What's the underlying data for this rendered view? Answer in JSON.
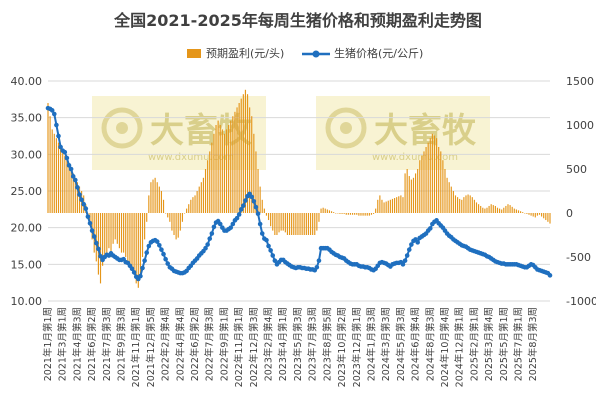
{
  "chart_data": {
    "type": "bar+line",
    "title": "全国2021-2025年每周生猪价格和预期盈利走势图",
    "legend": {
      "placement": "top",
      "entries": [
        {
          "name": "预期盈利(元/头)",
          "kind": "bar",
          "color": "#e5961a"
        },
        {
          "name": "生猪价格(元/公斤)",
          "kind": "line",
          "color": "#1f6fbf"
        }
      ]
    },
    "y_left": {
      "min": 10,
      "max": 40,
      "ticks": [
        "10.00",
        "15.00",
        "20.00",
        "25.00",
        "30.00",
        "35.00",
        "40.00"
      ],
      "unit": "元/公斤"
    },
    "y_right": {
      "min": -1000,
      "max": 1500,
      "ticks": [
        "-1000",
        "-500",
        "0",
        "500",
        "1000",
        "1500"
      ],
      "unit": "元/头"
    },
    "grid": true,
    "x_tick_labels": [
      "2021年1月第1周",
      "2021年3月第1周",
      "2021年4月第3周",
      "2021年6月第2周",
      "2021年7月第3周",
      "2021年9月第3周",
      "2021年11月第1周",
      "2021年12月第5周",
      "2022年2月第4周",
      "2022年4月第4周",
      "2022年6月第2周",
      "2022年7月第3周",
      "2022年9月第1周",
      "2022年11月第1周",
      "2022年12月第3周",
      "2023年2月第4周",
      "2023年4月第1周",
      "2023年5月第3周",
      "2023年7月第3周",
      "2023年8月第5周",
      "2023年10月第2周",
      "2023年12月第1周",
      "2024年1月第3周",
      "2024年3月第3周",
      "2024年5月第3周",
      "2024年6月第4周",
      "2024年8月第3周",
      "2024年10月第4周",
      "2024年12月第1周",
      "2025年2月第1周",
      "2025年3月第4周",
      "2025年5月第1周",
      "2025年7月第1周",
      "2025年8月第3周"
    ],
    "points_per_tick": 7,
    "pig_price": [
      36.3,
      36.2,
      36.0,
      35.5,
      34.0,
      32.5,
      31.0,
      30.5,
      30.3,
      29.5,
      28.5,
      28.0,
      27.0,
      26.5,
      25.5,
      24.5,
      23.8,
      23.2,
      22.6,
      21.5,
      20.6,
      19.6,
      18.8,
      17.9,
      17.1,
      16.1,
      15.6,
      16.0,
      16.3,
      16.2,
      16.5,
      16.2,
      16.0,
      15.8,
      15.6,
      15.6,
      15.7,
      15.3,
      15.2,
      14.8,
      14.4,
      13.9,
      13.3,
      13.0,
      13.4,
      14.5,
      15.5,
      16.6,
      17.5,
      18.0,
      18.2,
      18.3,
      18.1,
      17.6,
      17.0,
      16.4,
      15.7,
      15.1,
      14.6,
      14.4,
      14.1,
      14.0,
      13.9,
      13.8,
      13.8,
      13.9,
      14.1,
      14.5,
      14.8,
      15.2,
      15.5,
      15.8,
      16.2,
      16.5,
      16.8,
      17.2,
      17.7,
      18.5,
      19.2,
      20.1,
      20.7,
      20.9,
      20.5,
      20.0,
      19.6,
      19.6,
      19.8,
      20.0,
      20.5,
      21.0,
      21.3,
      21.8,
      22.5,
      23.0,
      23.7,
      24.3,
      24.6,
      24.2,
      23.6,
      22.8,
      21.9,
      20.5,
      19.2,
      18.5,
      18.3,
      17.5,
      16.9,
      16.2,
      15.5,
      15.0,
      15.3,
      15.6,
      15.6,
      15.3,
      15.1,
      14.9,
      14.7,
      14.6,
      14.5,
      14.6,
      14.6,
      14.5,
      14.5,
      14.4,
      14.4,
      14.3,
      14.3,
      14.2,
      14.6,
      15.5,
      17.2,
      17.2,
      17.2,
      17.2,
      17.0,
      16.7,
      16.5,
      16.3,
      16.2,
      16.0,
      15.9,
      15.8,
      15.5,
      15.3,
      15.1,
      15.0,
      15.0,
      15.0,
      14.8,
      14.7,
      14.7,
      14.6,
      14.6,
      14.5,
      14.3,
      14.2,
      14.4,
      14.8,
      15.2,
      15.3,
      15.2,
      15.1,
      14.9,
      14.7,
      15.0,
      15.1,
      15.2,
      15.2,
      15.3,
      15.0,
      15.5,
      16.2,
      17.0,
      17.7,
      18.2,
      18.4,
      18.0,
      18.6,
      18.8,
      19.0,
      19.2,
      19.6,
      19.9,
      20.5,
      20.8,
      21.0,
      20.6,
      20.3,
      20.0,
      19.6,
      19.2,
      18.9,
      18.7,
      18.4,
      18.2,
      18.0,
      17.8,
      17.6,
      17.5,
      17.4,
      17.2,
      17.0,
      16.9,
      16.8,
      16.7,
      16.6,
      16.5,
      16.4,
      16.3,
      16.1,
      16.0,
      15.8,
      15.6,
      15.4,
      15.3,
      15.2,
      15.1,
      15.1,
      15.0,
      15.0,
      15.0,
      15.0,
      15.0,
      15.0,
      14.9,
      14.8,
      14.7,
      14.6,
      14.6,
      14.8,
      15.0,
      14.9,
      14.6,
      14.3,
      14.2,
      14.1,
      14.0,
      13.9,
      13.8,
      13.5
    ],
    "expected_profit": [
      1250,
      1100,
      950,
      900,
      850,
      800,
      750,
      700,
      650,
      600,
      550,
      500,
      450,
      400,
      350,
      300,
      250,
      200,
      100,
      -50,
      -150,
      -300,
      -450,
      -550,
      -700,
      -800,
      -600,
      -500,
      -450,
      -400,
      -500,
      -350,
      -300,
      -350,
      -400,
      -450,
      -450,
      -500,
      -550,
      -600,
      -650,
      -700,
      -800,
      -850,
      -700,
      -500,
      -300,
      -100,
      200,
      350,
      380,
      400,
      350,
      300,
      250,
      150,
      0,
      -50,
      -100,
      -200,
      -250,
      -300,
      -280,
      -200,
      -100,
      0,
      50,
      100,
      150,
      180,
      200,
      250,
      300,
      350,
      400,
      500,
      600,
      700,
      800,
      900,
      1000,
      1050,
      1000,
      950,
      900,
      950,
      1000,
      1050,
      1100,
      1150,
      1200,
      1250,
      1300,
      1350,
      1400,
      1350,
      1200,
      1100,
      900,
      700,
      500,
      300,
      150,
      50,
      -30,
      -80,
      -150,
      -200,
      -250,
      -250,
      -220,
      -200,
      -200,
      -220,
      -250,
      -250,
      -250,
      -250,
      -250,
      -250,
      -250,
      -250,
      -250,
      -250,
      -250,
      -250,
      -250,
      -250,
      -200,
      -100,
      50,
      60,
      50,
      40,
      30,
      20,
      10,
      0,
      0,
      -10,
      -10,
      -10,
      -20,
      -20,
      -20,
      -20,
      -20,
      -20,
      -30,
      -30,
      -30,
      -30,
      -30,
      -30,
      -20,
      -10,
      50,
      150,
      200,
      150,
      120,
      130,
      140,
      150,
      160,
      170,
      180,
      190,
      200,
      180,
      450,
      500,
      420,
      380,
      400,
      450,
      500,
      600,
      650,
      700,
      750,
      800,
      850,
      900,
      880,
      850,
      750,
      700,
      600,
      500,
      400,
      350,
      300,
      250,
      200,
      180,
      160,
      150,
      180,
      200,
      210,
      200,
      180,
      150,
      120,
      100,
      80,
      60,
      50,
      60,
      80,
      100,
      90,
      80,
      60,
      50,
      40,
      60,
      80,
      100,
      90,
      70,
      50,
      40,
      30,
      20,
      10,
      0,
      -10,
      -20,
      -30,
      -40,
      -50,
      -30,
      -20,
      -40,
      -60,
      -80,
      -100,
      -120
    ],
    "watermark": {
      "text": "大畜牧",
      "url": "www.dxumu.com"
    }
  }
}
